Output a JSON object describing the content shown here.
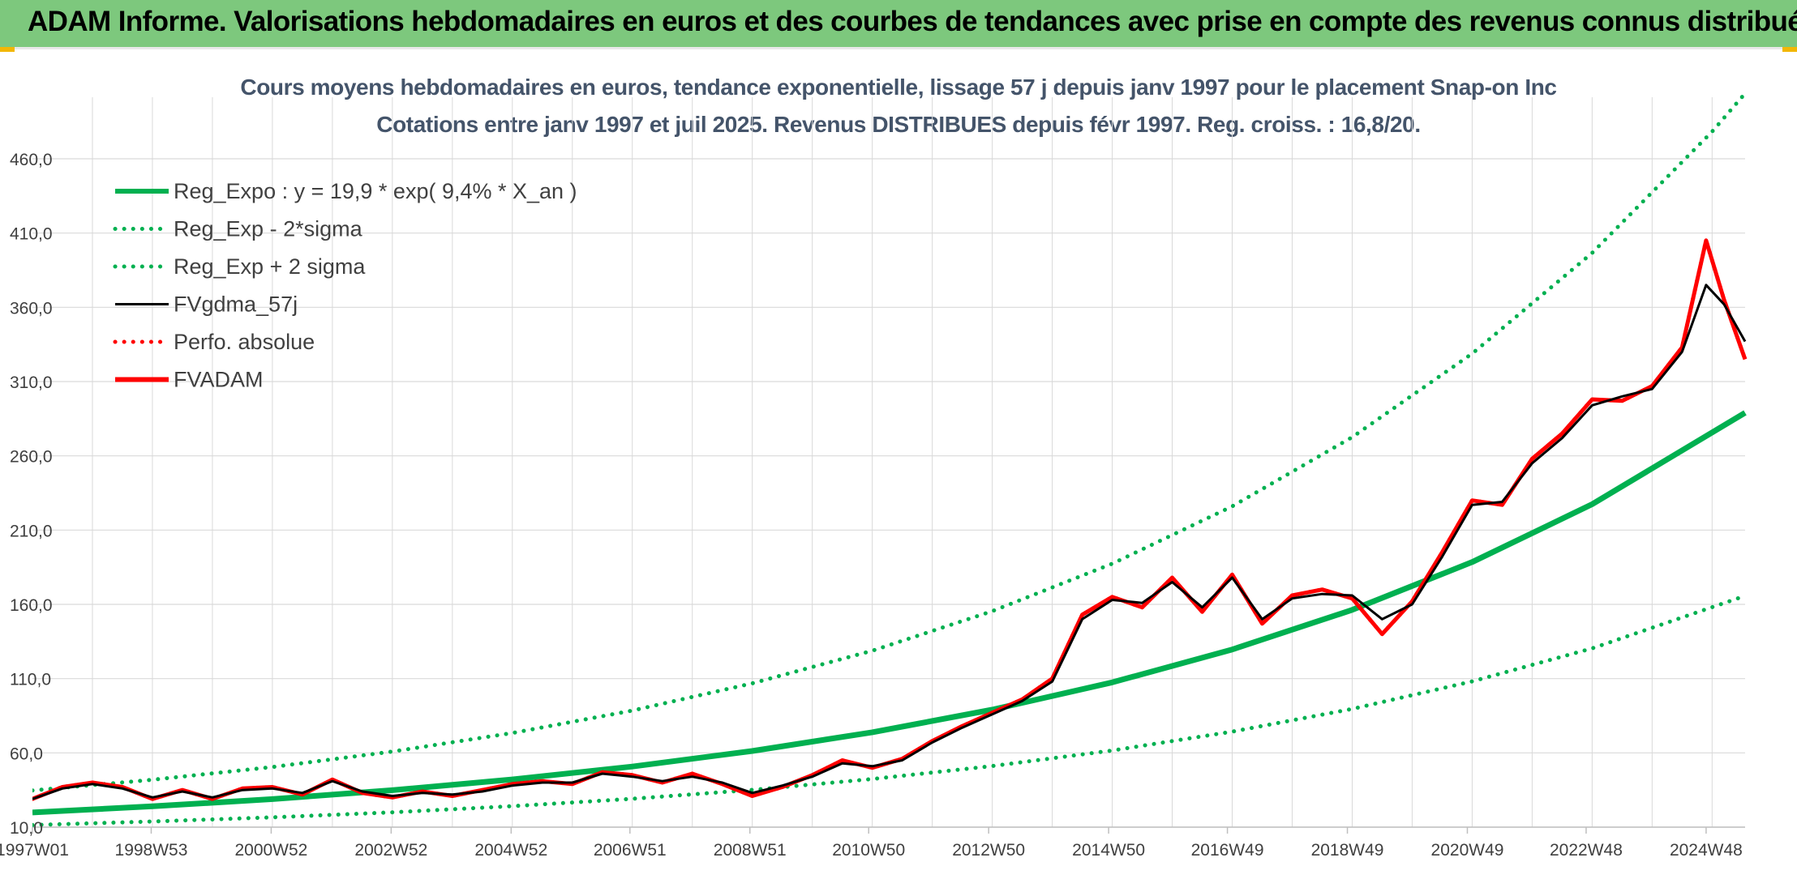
{
  "header": {
    "title": "ADAM Informe. Valorisations hebdomadaires en euros et des courbes de tendances avec prise en compte des revenus connus distribués"
  },
  "colors": {
    "banner": "#7dc87d",
    "reg_green": "#00b050",
    "fvgdma": "#000000",
    "fvadam": "#ff0000",
    "title_text": "#44546a",
    "grid": "#d9d9d9",
    "corner_accent": "#f2b705"
  },
  "chart_data": {
    "type": "line",
    "title": "Cours moyens hebdomadaires en euros, tendance exponentielle, lissage 57 j depuis janv 1997 pour le placement Snap-on Inc",
    "subtitle": "Cotations entre janv 1997 et juil 2025. Revenus DISTRIBUES depuis févr 1997. Reg. croiss. : 16,8/20.",
    "xlabel": "",
    "ylabel": "",
    "x_range": [
      1997.0,
      2025.55
    ],
    "ylim": [
      10,
      460
    ],
    "y_ticks": [
      "10,0",
      "60,0",
      "110,0",
      "160,0",
      "210,0",
      "260,0",
      "310,0",
      "360,0",
      "410,0",
      "460,0"
    ],
    "x_ticks": [
      {
        "label": "1997W01",
        "x": 1997.0
      },
      {
        "label": "1998W53",
        "x": 1998.98
      },
      {
        "label": "2000W52",
        "x": 2000.98
      },
      {
        "label": "2002W52",
        "x": 2002.98
      },
      {
        "label": "2004W52",
        "x": 2004.98
      },
      {
        "label": "2006W51",
        "x": 2006.96
      },
      {
        "label": "2008W51",
        "x": 2008.96
      },
      {
        "label": "2010W50",
        "x": 2010.94
      },
      {
        "label": "2012W50",
        "x": 2012.94
      },
      {
        "label": "2014W50",
        "x": 2014.94
      },
      {
        "label": "2016W49",
        "x": 2016.92
      },
      {
        "label": "2018W49",
        "x": 2018.92
      },
      {
        "label": "2020W49",
        "x": 2020.92
      },
      {
        "label": "2022W48",
        "x": 2022.9
      },
      {
        "label": "2024W48",
        "x": 2024.9
      }
    ],
    "grid": true,
    "legend_position": "top-left",
    "series": [
      {
        "name": "Reg_Expo : y = 19,9 * exp( 9,4% *  X_an )",
        "style": "solid-thick",
        "color": "#00b050",
        "x": [
          1997.0,
          1999.0,
          2001.0,
          2003.0,
          2005.0,
          2007.0,
          2009.0,
          2011.0,
          2013.0,
          2015.0,
          2017.0,
          2019.0,
          2021.0,
          2023.0,
          2025.55
        ],
        "y": [
          19.9,
          24.0,
          28.9,
          34.9,
          42.1,
          50.8,
          61.3,
          73.9,
          89.1,
          107.5,
          129.6,
          156.3,
          188.5,
          227.4,
          289.0
        ]
      },
      {
        "name": "Reg_Exp - 2*sigma",
        "style": "dotted",
        "color": "#00b050",
        "x": [
          1997.0,
          1999.0,
          2001.0,
          2003.0,
          2005.0,
          2007.0,
          2009.0,
          2011.0,
          2013.0,
          2015.0,
          2017.0,
          2019.0,
          2021.0,
          2023.0,
          2025.55
        ],
        "y": [
          11.4,
          13.8,
          16.6,
          20.0,
          24.1,
          29.1,
          35.1,
          42.4,
          51.1,
          61.6,
          74.3,
          89.6,
          108.1,
          130.4,
          165.7
        ]
      },
      {
        "name": "Reg_Exp + 2 sigma",
        "style": "dotted",
        "color": "#00b050",
        "x": [
          1997.0,
          1999.0,
          2001.0,
          2003.0,
          2005.0,
          2007.0,
          2009.0,
          2011.0,
          2013.0,
          2015.0,
          2017.0,
          2019.0,
          2021.0,
          2023.0,
          2025.0,
          2025.55
        ],
        "y": [
          34.7,
          41.9,
          50.5,
          60.9,
          73.4,
          88.5,
          106.8,
          128.8,
          155.4,
          187.4,
          226.0,
          272.6,
          328.8,
          396.6,
          478.3,
          504.0
        ]
      },
      {
        "name": "FVgdma_57j",
        "style": "solid",
        "color": "#000000",
        "x": [
          1997.0,
          1997.5,
          1998.0,
          1998.5,
          1999.0,
          1999.5,
          2000.0,
          2000.5,
          2001.0,
          2001.5,
          2002.0,
          2002.5,
          2003.0,
          2003.5,
          2004.0,
          2004.5,
          2005.0,
          2005.5,
          2006.0,
          2006.5,
          2007.0,
          2007.5,
          2008.0,
          2008.5,
          2009.0,
          2009.5,
          2010.0,
          2010.5,
          2011.0,
          2011.5,
          2012.0,
          2012.5,
          2013.0,
          2013.5,
          2014.0,
          2014.5,
          2015.0,
          2015.5,
          2016.0,
          2016.5,
          2017.0,
          2017.5,
          2018.0,
          2018.5,
          2019.0,
          2019.5,
          2020.0,
          2020.5,
          2021.0,
          2021.5,
          2022.0,
          2022.5,
          2023.0,
          2023.5,
          2024.0,
          2024.5,
          2024.9,
          2025.2,
          2025.55
        ],
        "y": [
          29,
          36,
          39,
          36,
          30,
          34,
          30,
          35,
          36,
          33,
          41,
          34,
          31,
          33,
          32,
          34,
          38,
          40,
          40,
          46,
          44,
          41,
          44,
          40,
          33,
          38,
          44,
          53,
          51,
          55,
          67,
          77,
          86,
          95,
          108,
          150,
          163,
          161,
          175,
          158,
          178,
          150,
          164,
          167,
          166,
          150,
          160,
          192,
          227,
          229,
          255,
          272,
          294,
          300,
          305,
          330,
          375,
          362,
          337
        ]
      },
      {
        "name": "Perfo. absolue",
        "style": "dotted",
        "color": "#ff0000",
        "x": [
          1997.0,
          1997.5,
          1998.0,
          1998.5,
          1999.0,
          1999.5,
          2000.0,
          2000.5,
          2001.0,
          2001.5,
          2002.0,
          2002.5,
          2003.0,
          2003.5,
          2004.0,
          2004.5,
          2005.0,
          2005.5,
          2006.0,
          2006.5,
          2007.0,
          2007.5,
          2008.0,
          2008.5,
          2009.0,
          2009.5,
          2010.0,
          2010.5,
          2011.0,
          2011.5,
          2012.0,
          2012.5,
          2013.0,
          2013.5,
          2014.0,
          2014.5,
          2015.0,
          2015.5,
          2016.0,
          2016.5,
          2017.0,
          2017.5,
          2018.0,
          2018.5,
          2019.0,
          2019.5,
          2020.0,
          2020.5,
          2021.0,
          2021.5,
          2022.0,
          2022.5,
          2023.0,
          2023.5,
          2024.0,
          2024.5,
          2024.9,
          2025.2,
          2025.55
        ],
        "y": [
          29,
          37,
          40,
          37,
          29,
          35,
          29,
          36,
          37,
          32,
          42,
          33,
          30,
          34,
          31,
          35,
          39,
          41,
          39,
          47,
          45,
          40,
          46,
          39,
          31,
          37,
          45,
          55,
          50,
          56,
          68,
          78,
          87,
          96,
          110,
          153,
          165,
          158,
          178,
          155,
          180,
          147,
          166,
          170,
          164,
          140,
          162,
          195,
          230,
          227,
          258,
          275,
          298,
          297,
          307,
          333,
          405,
          365,
          325
        ]
      },
      {
        "name": "FVADAM",
        "style": "solid-thick",
        "color": "#ff0000",
        "x": [
          1997.0,
          1997.5,
          1998.0,
          1998.5,
          1999.0,
          1999.5,
          2000.0,
          2000.5,
          2001.0,
          2001.5,
          2002.0,
          2002.5,
          2003.0,
          2003.5,
          2004.0,
          2004.5,
          2005.0,
          2005.5,
          2006.0,
          2006.5,
          2007.0,
          2007.5,
          2008.0,
          2008.5,
          2009.0,
          2009.5,
          2010.0,
          2010.5,
          2011.0,
          2011.5,
          2012.0,
          2012.5,
          2013.0,
          2013.5,
          2014.0,
          2014.5,
          2015.0,
          2015.5,
          2016.0,
          2016.5,
          2017.0,
          2017.5,
          2018.0,
          2018.5,
          2019.0,
          2019.5,
          2020.0,
          2020.5,
          2021.0,
          2021.5,
          2022.0,
          2022.5,
          2023.0,
          2023.5,
          2024.0,
          2024.5,
          2024.9,
          2025.2,
          2025.55
        ],
        "y": [
          29,
          37,
          40,
          37,
          29,
          35,
          29,
          36,
          37,
          32,
          42,
          33,
          30,
          34,
          31,
          35,
          39,
          41,
          39,
          47,
          45,
          40,
          46,
          39,
          31,
          37,
          45,
          55,
          50,
          56,
          68,
          78,
          87,
          96,
          110,
          153,
          165,
          158,
          178,
          155,
          180,
          147,
          166,
          170,
          164,
          140,
          162,
          195,
          230,
          227,
          258,
          275,
          298,
          297,
          307,
          333,
          405,
          365,
          325
        ]
      }
    ]
  }
}
